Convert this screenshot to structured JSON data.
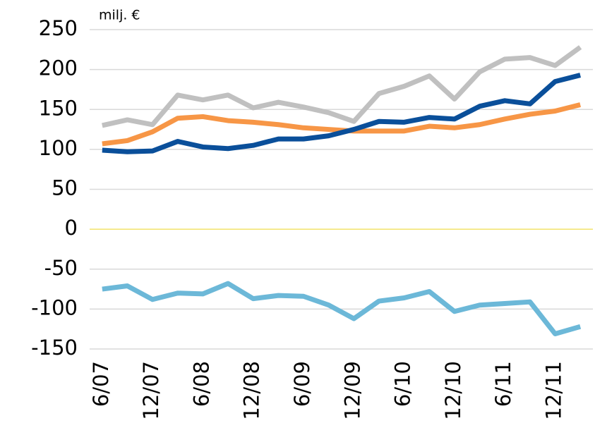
{
  "chart_data": {
    "type": "line",
    "y_unit_label": "milj. €",
    "categories": [
      "6/07",
      null,
      "12/07",
      null,
      "6/08",
      null,
      "12/08",
      null,
      "6/09",
      null,
      "12/09",
      null,
      "6/10",
      null,
      "12/10",
      null,
      "6/11",
      null,
      "12/11",
      null
    ],
    "series": [
      {
        "color": "#c0c0c0",
        "values": [
          130,
          137,
          131,
          168,
          162,
          168,
          152,
          159,
          153,
          146,
          135,
          170,
          179,
          192,
          163,
          197,
          213,
          215,
          205,
          228
        ]
      },
      {
        "color": "#f79646",
        "values": [
          107,
          111,
          122,
          139,
          141,
          136,
          134,
          131,
          127,
          125,
          123,
          123,
          123,
          129,
          127,
          131,
          138,
          144,
          148,
          156
        ]
      },
      {
        "color": "#0a4f9a",
        "values": [
          99,
          97,
          98,
          110,
          103,
          101,
          105,
          113,
          113,
          117,
          125,
          135,
          134,
          140,
          138,
          154,
          161,
          157,
          185,
          193
        ]
      },
      {
        "color": "#6cb8d8",
        "values": [
          -75,
          -71,
          -88,
          -80,
          -81,
          -68,
          -87,
          -83,
          -84,
          -95,
          -112,
          -90,
          -86,
          -78,
          -103,
          -95,
          -93,
          -91,
          -131,
          -122
        ]
      }
    ],
    "ylim": [
      -150,
      250
    ],
    "yticks": [
      -150,
      -100,
      -50,
      0,
      50,
      100,
      150,
      200,
      250
    ],
    "grid": true,
    "grid_color": "#d9d9d9",
    "zero_line_color": "#f2e36a"
  }
}
